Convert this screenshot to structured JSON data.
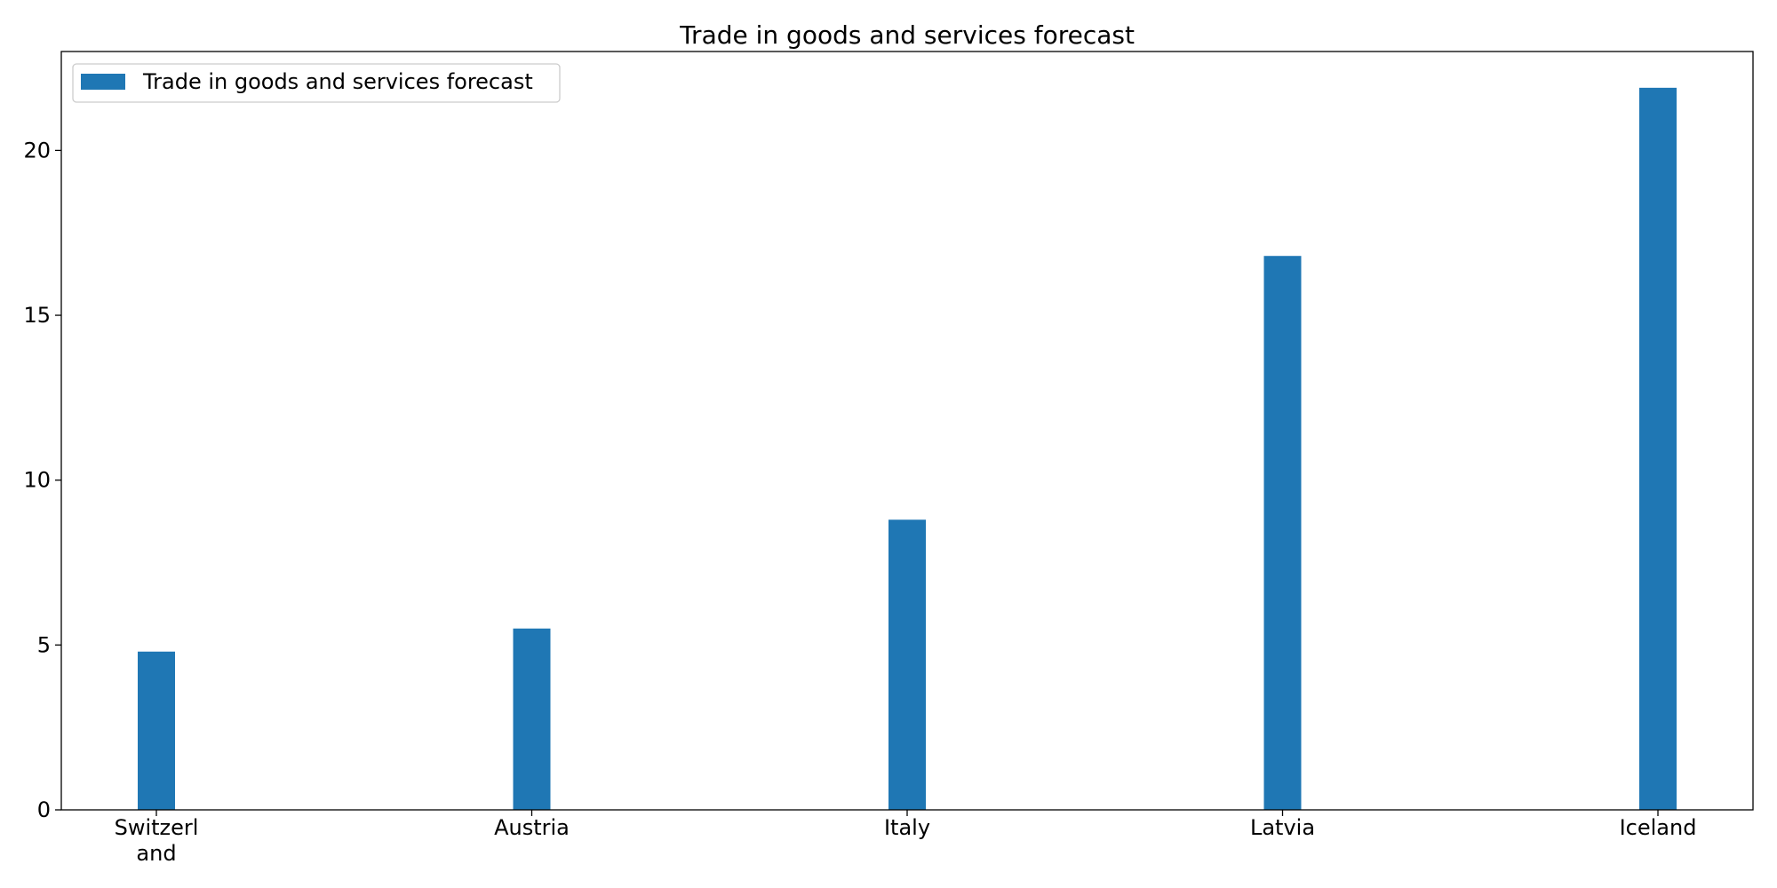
{
  "chart_data": {
    "type": "bar",
    "title": "Trade in goods and services forecast",
    "xlabel": "",
    "ylabel": "",
    "categories": [
      [
        "Switzerl",
        "and"
      ],
      [
        "Austria"
      ],
      [
        "Italy"
      ],
      [
        "Latvia"
      ],
      [
        "Iceland"
      ]
    ],
    "series": [
      {
        "name": "Trade in goods and services forecast",
        "values": [
          4.8,
          5.5,
          8.8,
          16.8,
          21.9
        ],
        "color": "#1f77b4"
      }
    ],
    "ylim": [
      0,
      23.0
    ],
    "yticks": [
      0,
      5,
      10,
      15,
      20
    ],
    "grid": false,
    "legend": "top-left"
  }
}
